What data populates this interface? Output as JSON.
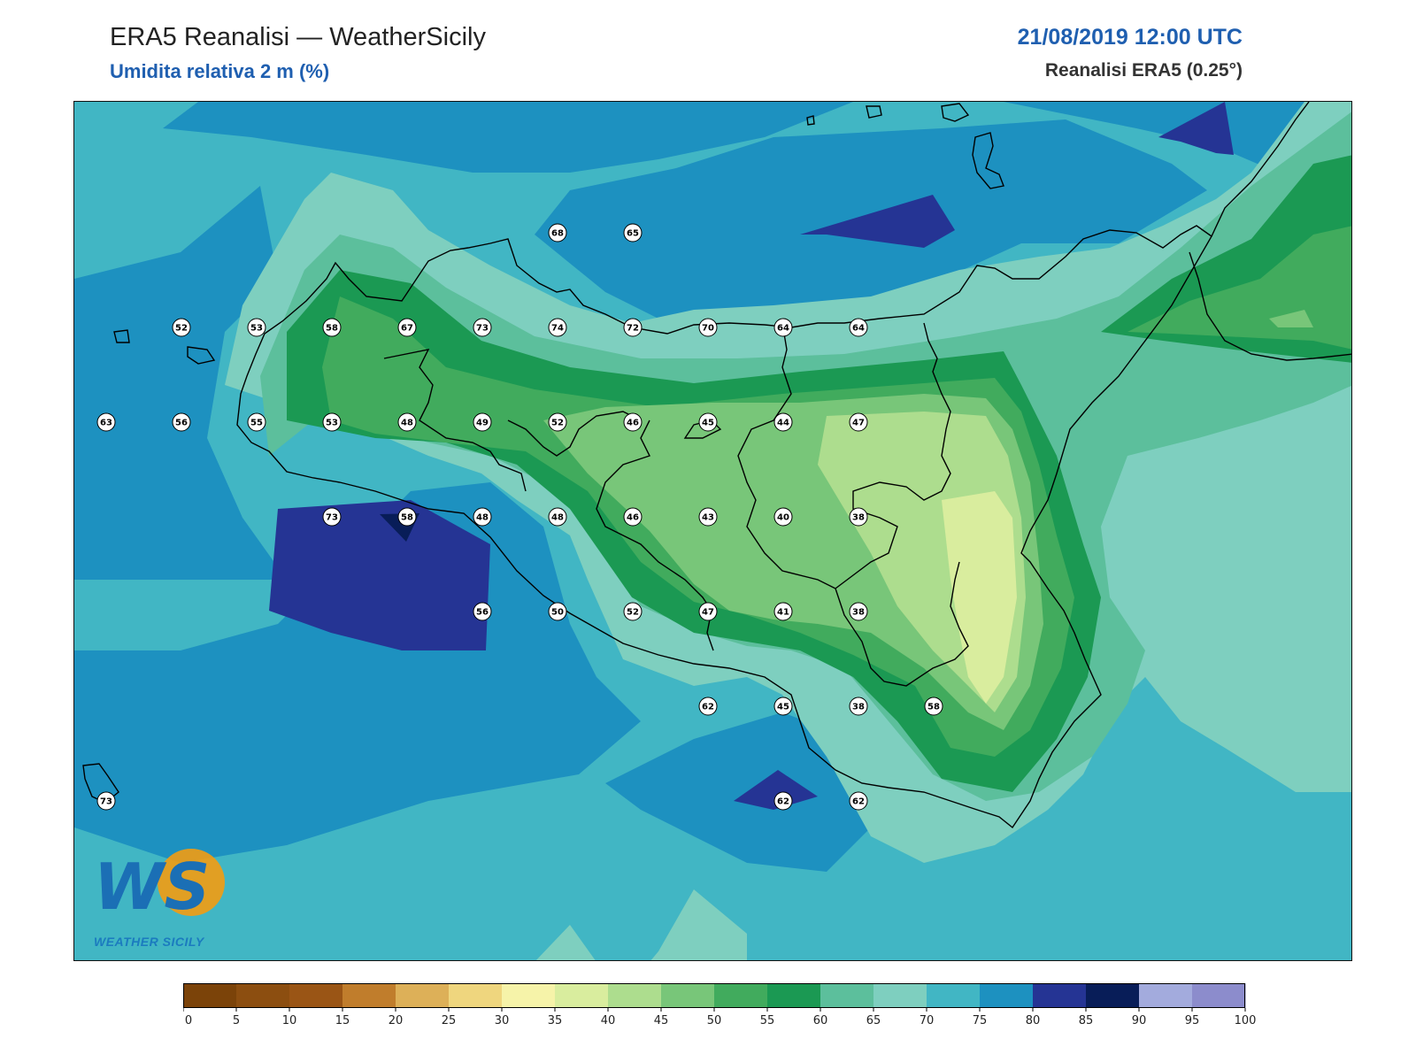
{
  "header": {
    "title": "ERA5 Reanalisi — WeatherSicily",
    "subtitle": "Umidita relativa 2 m (%)",
    "date": "21/08/2019 12:00 UTC",
    "source": "Reanalisi ERA5 (0.25°)"
  },
  "logo": {
    "letters": "WS",
    "text": "WEATHER SICILY"
  },
  "colorbar": {
    "ticks": [
      0,
      5,
      10,
      15,
      20,
      25,
      30,
      35,
      40,
      45,
      50,
      55,
      60,
      65,
      70,
      75,
      80,
      85,
      90,
      95,
      100
    ],
    "colors": [
      "#7b4309",
      "#8c4e10",
      "#9a5515",
      "#c07d2c",
      "#ddb058",
      "#efd67e",
      "#f6f3a9",
      "#d9ed9e",
      "#addd8e",
      "#78c679",
      "#41ab5d",
      "#1b9953",
      "#5cbf9c",
      "#7ecfbf",
      "#41b6c4",
      "#1d91c0",
      "#253494",
      "#081d58",
      "#a3abdd",
      "#8c8ccc"
    ]
  },
  "stations": [
    {
      "label": "68",
      "lon": 14.9,
      "lat": 38.6
    },
    {
      "label": "65",
      "lon": 15.4,
      "lat": 38.6
    },
    {
      "label": "52",
      "lon": 12.4,
      "lat": 38.1
    },
    {
      "label": "53",
      "lon": 12.9,
      "lat": 38.1
    },
    {
      "label": "58",
      "lon": 13.4,
      "lat": 38.1
    },
    {
      "label": "67",
      "lon": 13.9,
      "lat": 38.1
    },
    {
      "label": "73",
      "lon": 14.4,
      "lat": 38.1
    },
    {
      "label": "74",
      "lon": 14.9,
      "lat": 38.1
    },
    {
      "label": "72",
      "lon": 15.4,
      "lat": 38.1
    },
    {
      "label": "70",
      "lon": 15.9,
      "lat": 38.1
    },
    {
      "label": "64",
      "lon": 16.4,
      "lat": 38.1
    },
    {
      "label": "64",
      "lon": 16.9,
      "lat": 38.1
    },
    {
      "label": "63",
      "lon": 11.9,
      "lat": 37.6
    },
    {
      "label": "56",
      "lon": 12.4,
      "lat": 37.6
    },
    {
      "label": "55",
      "lon": 12.9,
      "lat": 37.6
    },
    {
      "label": "53",
      "lon": 13.4,
      "lat": 37.6
    },
    {
      "label": "48",
      "lon": 13.9,
      "lat": 37.6
    },
    {
      "label": "49",
      "lon": 14.4,
      "lat": 37.6
    },
    {
      "label": "52",
      "lon": 14.9,
      "lat": 37.6
    },
    {
      "label": "46",
      "lon": 15.4,
      "lat": 37.6
    },
    {
      "label": "45",
      "lon": 15.9,
      "lat": 37.6
    },
    {
      "label": "44",
      "lon": 16.4,
      "lat": 37.6
    },
    {
      "label": "47",
      "lon": 16.9,
      "lat": 37.6
    },
    {
      "label": "73",
      "lon": 13.4,
      "lat": 37.1
    },
    {
      "label": "58",
      "lon": 13.9,
      "lat": 37.1
    },
    {
      "label": "48",
      "lon": 14.4,
      "lat": 37.1
    },
    {
      "label": "48",
      "lon": 14.9,
      "lat": 37.1
    },
    {
      "label": "46",
      "lon": 15.4,
      "lat": 37.1
    },
    {
      "label": "43",
      "lon": 15.9,
      "lat": 37.1
    },
    {
      "label": "40",
      "lon": 16.4,
      "lat": 37.1
    },
    {
      "label": "38",
      "lon": 16.9,
      "lat": 37.1
    },
    {
      "label": "56",
      "lon": 14.4,
      "lat": 36.6
    },
    {
      "label": "50",
      "lon": 14.9,
      "lat": 36.6
    },
    {
      "label": "52",
      "lon": 15.4,
      "lat": 36.6
    },
    {
      "label": "47",
      "lon": 15.9,
      "lat": 36.6
    },
    {
      "label": "41",
      "lon": 16.4,
      "lat": 36.6
    },
    {
      "label": "38",
      "lon": 16.9,
      "lat": 36.6
    },
    {
      "label": "62",
      "lon": 15.9,
      "lat": 36.1
    },
    {
      "label": "45",
      "lon": 16.4,
      "lat": 36.1
    },
    {
      "label": "38",
      "lon": 16.9,
      "lat": 36.1
    },
    {
      "label": "58",
      "lon": 17.4,
      "lat": 36.1
    },
    {
      "label": "73",
      "lon": 11.9,
      "lat": 35.6
    },
    {
      "label": "62",
      "lon": 16.4,
      "lat": 35.6
    },
    {
      "label": "62",
      "lon": 16.9,
      "lat": 35.6
    }
  ]
}
